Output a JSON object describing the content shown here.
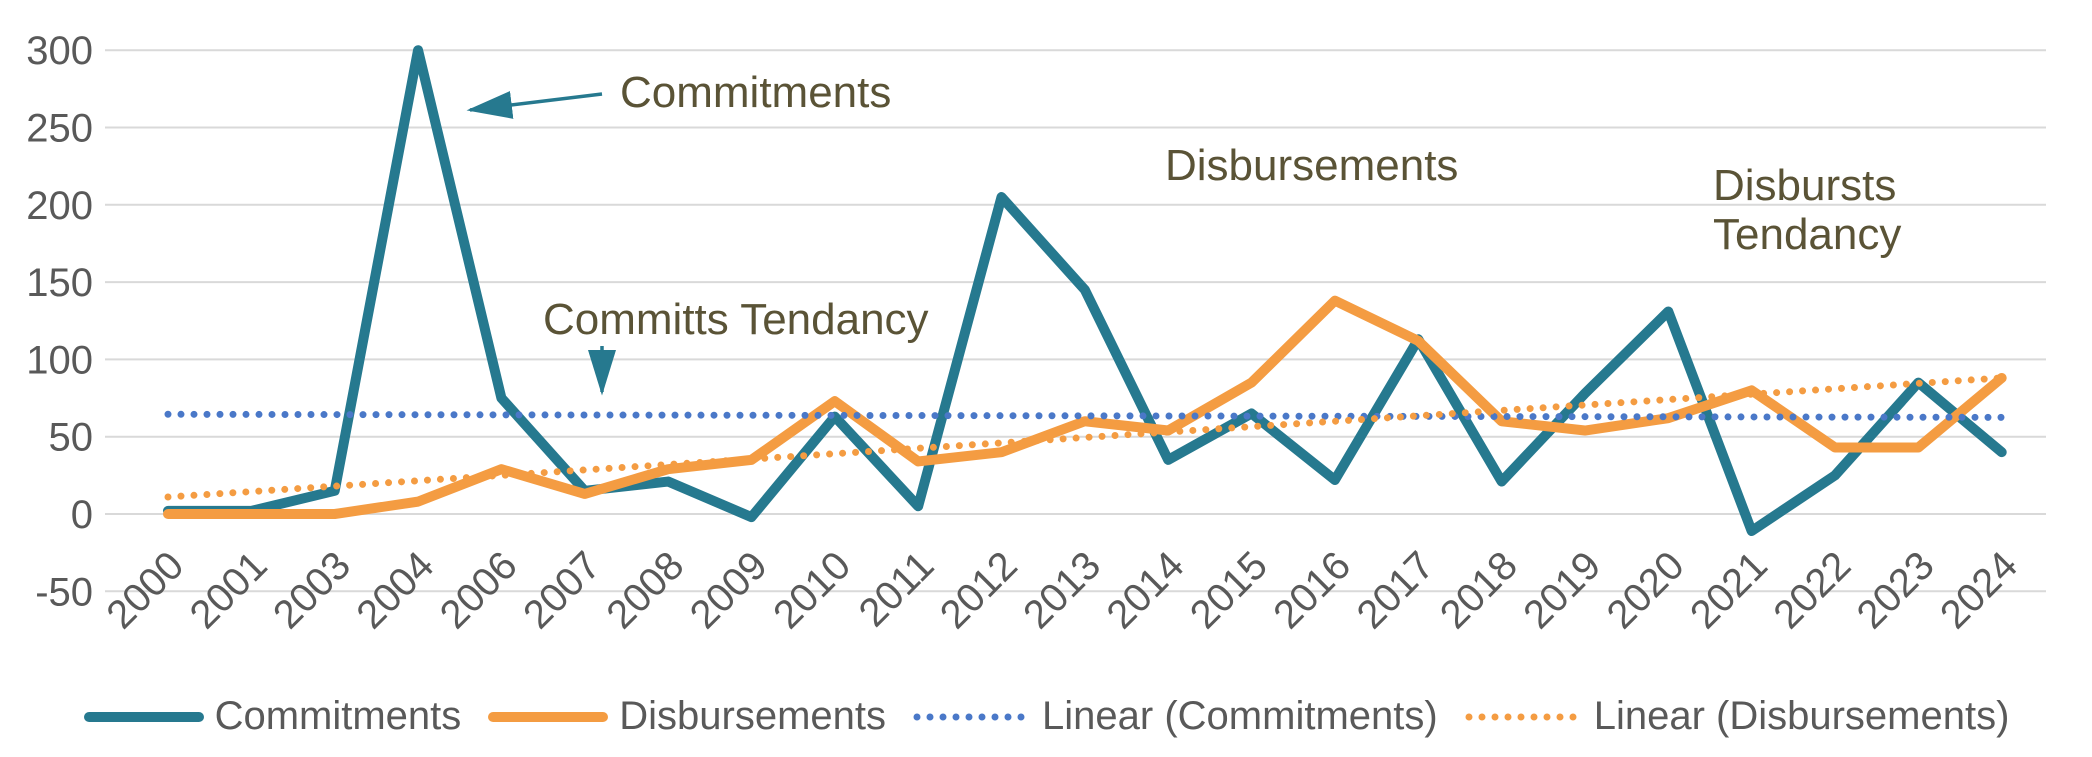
{
  "chart_data": {
    "type": "line",
    "title": "",
    "xlabel": "",
    "ylabel": "",
    "categories": [
      "2000",
      "2001",
      "2003",
      "2004",
      "2006",
      "2007",
      "2008",
      "2009",
      "2010",
      "2011",
      "2012",
      "2013",
      "2014",
      "2015",
      "2016",
      "2017",
      "2018",
      "2019",
      "2020",
      "2021",
      "2022",
      "2023",
      "2024"
    ],
    "series": [
      {
        "name": "Commitments",
        "style": "solid",
        "color": "#26798F",
        "values": [
          2,
          2,
          15,
          300,
          75,
          15,
          21,
          -2,
          63,
          5,
          205,
          145,
          35,
          65,
          22,
          113,
          21,
          78,
          131,
          -11,
          25,
          85,
          40
        ]
      },
      {
        "name": "Disbursements",
        "style": "solid",
        "color": "#F49C42",
        "values": [
          0,
          0,
          0,
          8,
          29,
          13,
          29,
          35,
          73,
          34,
          40,
          60,
          54,
          85,
          138,
          112,
          60,
          54,
          62,
          80,
          43,
          43,
          88
        ]
      },
      {
        "name": "Linear (Commitments)",
        "style": "dotted",
        "color": "#4A78C8",
        "trend": true,
        "start": 64.5,
        "end": 62.5
      },
      {
        "name": "Linear (Disbursements)",
        "style": "dotted",
        "color": "#F49C42",
        "trend": true,
        "start": 11,
        "end": 88
      }
    ],
    "y_ticks": [
      300,
      250,
      200,
      150,
      100,
      50,
      0,
      -50
    ],
    "ylim": [
      -50,
      300
    ],
    "grid": true,
    "gridline_color": "#D9D9D9",
    "legend_position": "bottom"
  },
  "annotations": {
    "commitments": "Commitments",
    "committs_tendancy": "Committs Tendancy",
    "disbursements": "Disbursements",
    "disbursts_line1": "Disbursts",
    "disbursts_line2": "Tendancy"
  },
  "legend": {
    "items": [
      {
        "label": "Commitments",
        "style": "solid",
        "color": "#26798F"
      },
      {
        "label": "Disbursements",
        "style": "solid",
        "color": "#F49C42"
      },
      {
        "label": "Linear (Commitments)",
        "style": "dotted",
        "color": "#4A78C8"
      },
      {
        "label": "Linear (Disbursements)",
        "style": "dotted",
        "color": "#F49C42"
      }
    ]
  }
}
